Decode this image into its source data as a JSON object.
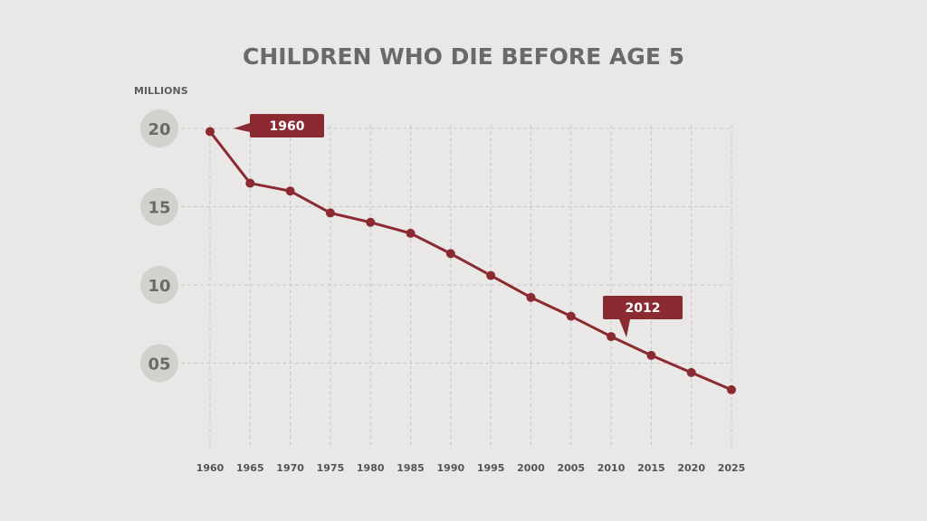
{
  "chart_data": {
    "type": "line",
    "title": "CHILDREN WHO DIE BEFORE AGE 5",
    "ylabel": "MILLIONS",
    "xlabel": "",
    "x": [
      1960,
      1965,
      1970,
      1975,
      1980,
      1985,
      1990,
      1995,
      2000,
      2005,
      2010,
      2015,
      2020,
      2025
    ],
    "x_tick_labels": [
      "1960",
      "1965",
      "1970",
      "1975",
      "1980",
      "1985",
      "1990",
      "1995",
      "2000",
      "2005",
      "2010",
      "2015",
      "2020",
      "2025"
    ],
    "y_ticks": [
      20,
      15,
      10,
      5
    ],
    "y_tick_labels": [
      "20",
      "15",
      "10",
      "05"
    ],
    "ylim": [
      0,
      20
    ],
    "xlim": [
      1960,
      2025
    ],
    "series": [
      {
        "values": [
          19.8,
          16.5,
          16.0,
          14.6,
          14.0,
          13.3,
          12.0,
          10.6,
          9.2,
          8.0,
          6.7,
          5.5,
          4.4,
          3.3
        ],
        "color": "#8b2a31"
      }
    ],
    "annotations": [
      {
        "text": "1960",
        "x": 1960,
        "y": 19.8
      },
      {
        "text": "2012",
        "x": 2012,
        "y": 6.7
      }
    ],
    "grid": true,
    "colors": {
      "background": "#e9e8e6",
      "grid": "#c9c8c5",
      "line": "#8b2a31",
      "callout": "#8b2a31",
      "tick_circle": "#d2d1ce"
    }
  }
}
